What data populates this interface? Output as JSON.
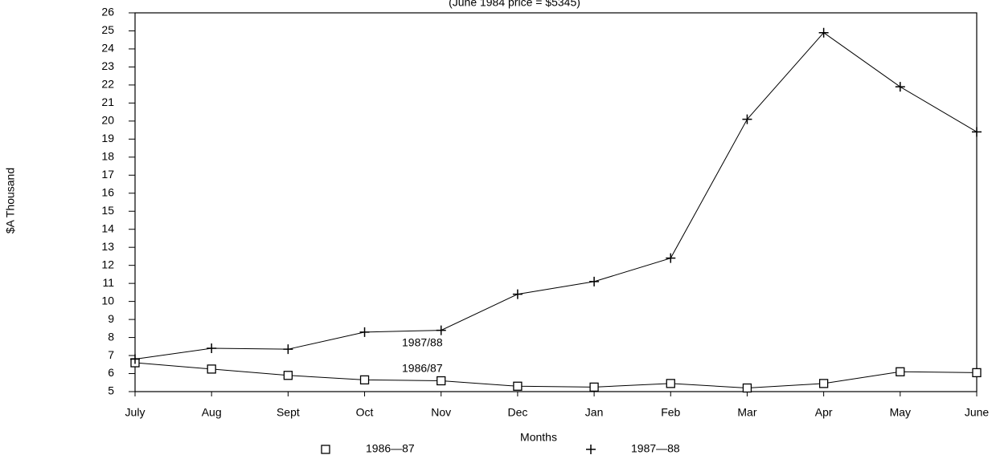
{
  "chart_data": {
    "type": "line",
    "subtitle": "(June 1984 price = $5345)",
    "x_label": "Months",
    "y_label": "$A Thousand",
    "categories": [
      "July",
      "Aug",
      "Sept",
      "Oct",
      "Nov",
      "Dec",
      "Jan",
      "Feb",
      "Mar",
      "Apr",
      "May",
      "June"
    ],
    "series": [
      {
        "name": "1986—87",
        "marker": "square",
        "color": "#000000",
        "values": [
          6.6,
          6.25,
          5.9,
          5.65,
          5.6,
          5.3,
          5.25,
          5.45,
          5.2,
          5.45,
          6.1,
          6.05
        ]
      },
      {
        "name": "1987—88",
        "marker": "plus",
        "color": "#000000",
        "values": [
          6.8,
          7.4,
          7.35,
          8.3,
          8.4,
          10.4,
          11.1,
          12.4,
          20.1,
          24.9,
          21.9,
          19.4
        ]
      }
    ],
    "annotations": [
      {
        "text": "1987/88"
      },
      {
        "text": "1986/87"
      }
    ],
    "ylim": [
      5,
      26
    ],
    "yticks": [
      5,
      6,
      7,
      8,
      9,
      10,
      11,
      12,
      13,
      14,
      15,
      16,
      17,
      18,
      19,
      20,
      21,
      22,
      23,
      24,
      25,
      26
    ],
    "grid": false
  }
}
